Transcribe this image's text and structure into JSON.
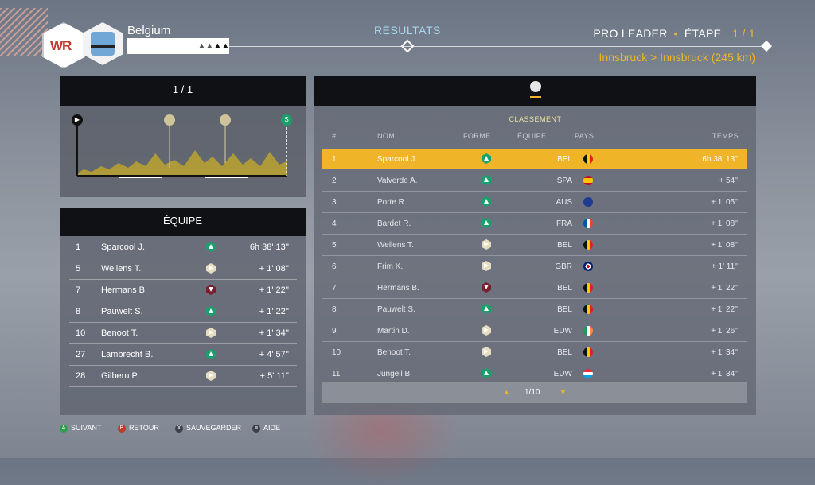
{
  "header": {
    "team_name": "Belgium",
    "logo_text": "WR",
    "tab_title": "RÉSULTATS",
    "mode": "PRO LEADER",
    "stage_label": "ÉTAPE",
    "stage_count": "1 / 1",
    "route": "Innsbruck > Innsbruck (245 km)"
  },
  "profile_panel": {
    "page": "1 / 1",
    "start_marker": "S"
  },
  "team_panel": {
    "title": "ÉQUIPE",
    "rows": [
      {
        "pos": "1",
        "name": "Sparcool J.",
        "form": "green",
        "time": "6h 38' 13''"
      },
      {
        "pos": "5",
        "name": "Wellens T.",
        "form": "cream",
        "time": "+ 1' 08''"
      },
      {
        "pos": "7",
        "name": "Hermans B.",
        "form": "wine",
        "time": "+ 1' 22''"
      },
      {
        "pos": "8",
        "name": "Pauwelt S.",
        "form": "green",
        "time": "+ 1' 22''"
      },
      {
        "pos": "10",
        "name": "Benoot T.",
        "form": "cream",
        "time": "+ 1' 34''"
      },
      {
        "pos": "27",
        "name": "Lambrecht B.",
        "form": "green",
        "time": "+ 4' 57''"
      },
      {
        "pos": "28",
        "name": "Gilberu P.",
        "form": "cream",
        "time": "+ 5' 11''"
      }
    ]
  },
  "classement": {
    "title": "CLASSEMENT",
    "columns": {
      "pos": "#",
      "name": "NOM",
      "form": "FORME",
      "team": "ÉQUIPE",
      "country": "PAYS",
      "time": "TEMPS"
    },
    "rows": [
      {
        "pos": "1",
        "name": "Sparcool J.",
        "form": "green",
        "team": "BEL",
        "flag": "BEL",
        "time": "6h 38' 13''"
      },
      {
        "pos": "2",
        "name": "Valverde A.",
        "form": "green",
        "team": "SPA",
        "flag": "ESP",
        "time": "+ 54''"
      },
      {
        "pos": "3",
        "name": "Porte R.",
        "form": "green",
        "team": "AUS",
        "flag": "AUS",
        "time": "+ 1' 05''"
      },
      {
        "pos": "4",
        "name": "Bardet R.",
        "form": "green",
        "team": "FRA",
        "flag": "FRA",
        "time": "+ 1' 08''"
      },
      {
        "pos": "5",
        "name": "Wellens T.",
        "form": "cream",
        "team": "BEL",
        "flag": "BEL",
        "time": "+ 1' 08''"
      },
      {
        "pos": "6",
        "name": "Frim K.",
        "form": "cream",
        "team": "GBR",
        "flag": "GBR",
        "time": "+ 1' 11''"
      },
      {
        "pos": "7",
        "name": "Hermans B.",
        "form": "wine",
        "team": "BEL",
        "flag": "BEL",
        "time": "+ 1' 22''"
      },
      {
        "pos": "8",
        "name": "Pauwelt S.",
        "form": "green",
        "team": "BEL",
        "flag": "BEL",
        "time": "+ 1' 22''"
      },
      {
        "pos": "9",
        "name": "Martin D.",
        "form": "cream",
        "team": "EUW",
        "flag": "IRL",
        "time": "+ 1' 26''"
      },
      {
        "pos": "10",
        "name": "Benoot T.",
        "form": "cream",
        "team": "BEL",
        "flag": "BEL",
        "time": "+ 1' 34''"
      },
      {
        "pos": "11",
        "name": "Jungell B.",
        "form": "green",
        "team": "EUW",
        "flag": "LUX",
        "time": "+ 1' 34''"
      }
    ],
    "pager": "1/10"
  },
  "footer": {
    "next": "SUIVANT",
    "next_key": "A",
    "back": "RETOUR",
    "back_key": "B",
    "save": "SAUVEGARDER",
    "save_key": "X",
    "help": "AIDE",
    "help_key": "≡"
  },
  "colors": {
    "accent": "#f0b429",
    "form_green": "#1aa06b",
    "form_cream": "#e6dcc0",
    "form_wine": "#7a1f2e",
    "panel_dark": "#0f1115"
  }
}
